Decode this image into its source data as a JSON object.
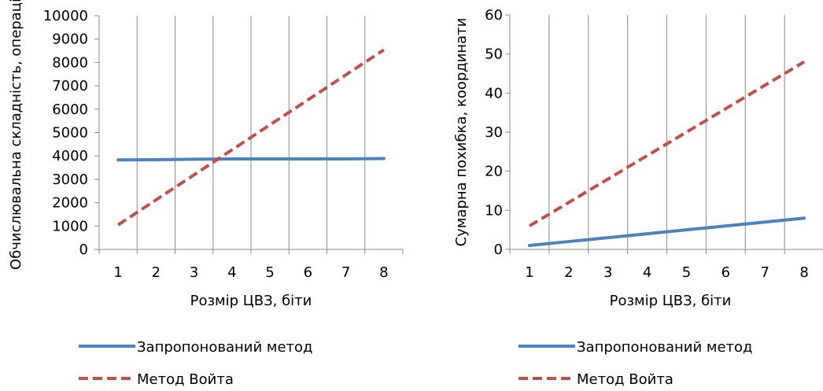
{
  "chart_data": [
    {
      "type": "line",
      "title": "",
      "xlabel": "Розмір ЦВЗ, біти",
      "ylabel": "Обчислювальна складність, операції",
      "categories": [
        "1",
        "2",
        "3",
        "4",
        "5",
        "6",
        "7",
        "8"
      ],
      "ylim": [
        0,
        10000
      ],
      "yticks": [
        0,
        1000,
        2000,
        3000,
        4000,
        5000,
        6000,
        7000,
        8000,
        9000,
        10000
      ],
      "grid": "vertical",
      "legend": "bottom",
      "series": [
        {
          "name": "Запропонований метод",
          "color": "#4f81bd",
          "dash": "solid",
          "values": [
            3830,
            3840,
            3860,
            3870,
            3870,
            3870,
            3870,
            3890
          ]
        },
        {
          "name": "Метод Войта",
          "color": "#c0504d",
          "dash": "dashed",
          "values": [
            1050,
            2120,
            3190,
            4260,
            5330,
            6400,
            7470,
            8540
          ]
        }
      ]
    },
    {
      "type": "line",
      "title": "",
      "xlabel": "Розмір ЦВЗ, біти",
      "ylabel": "Сумарна похибка, координати",
      "categories": [
        "1",
        "2",
        "3",
        "4",
        "5",
        "6",
        "7",
        "8"
      ],
      "ylim": [
        0,
        60
      ],
      "yticks": [
        0,
        10,
        20,
        30,
        40,
        50,
        60
      ],
      "grid": "vertical",
      "legend": "bottom",
      "series": [
        {
          "name": "Запропонований метод",
          "color": "#4f81bd",
          "dash": "solid",
          "values": [
            1,
            2,
            3,
            4,
            5,
            6,
            7,
            8
          ]
        },
        {
          "name": "Метод Войта",
          "color": "#c0504d",
          "dash": "dashed",
          "values": [
            6,
            12,
            18,
            24,
            30,
            36,
            42,
            48
          ]
        }
      ]
    }
  ]
}
